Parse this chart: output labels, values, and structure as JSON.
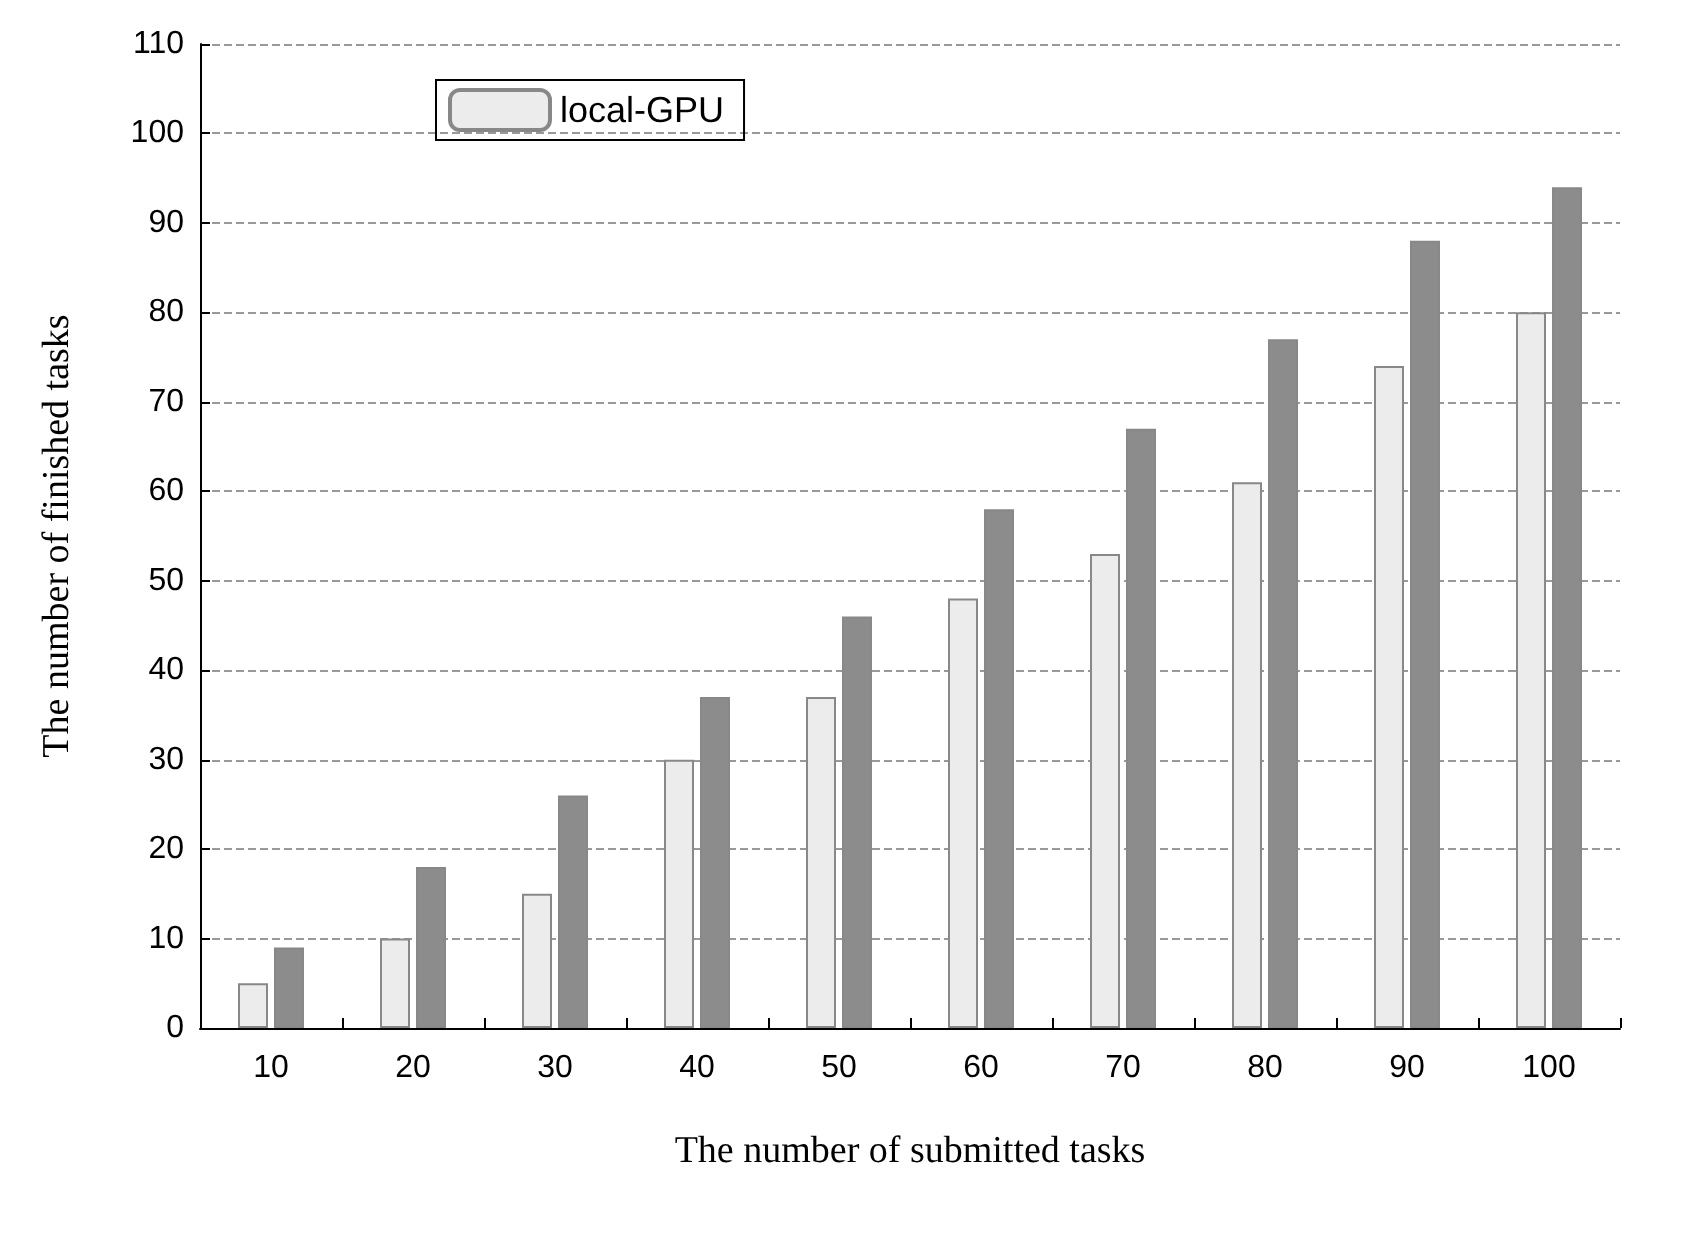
{
  "chart_data": {
    "type": "bar",
    "xlabel": "The number of submitted tasks",
    "ylabel": "The number of finished tasks",
    "categories": [
      "10",
      "20",
      "30",
      "40",
      "50",
      "60",
      "70",
      "80",
      "90",
      "100"
    ],
    "series": [
      {
        "name": "local-GPU",
        "color": "#ececec",
        "values": [
          5,
          10,
          15,
          30,
          37,
          48,
          53,
          61,
          74,
          80
        ]
      },
      {
        "color": "#8c8c8c",
        "values": [
          9,
          18,
          26,
          37,
          46,
          58,
          67,
          77,
          88,
          94
        ]
      }
    ],
    "ylim": [
      0,
      110
    ],
    "yticks": [
      0,
      10,
      20,
      30,
      40,
      50,
      60,
      70,
      80,
      90,
      100,
      110
    ],
    "grid": "y",
    "legend": "top left"
  }
}
